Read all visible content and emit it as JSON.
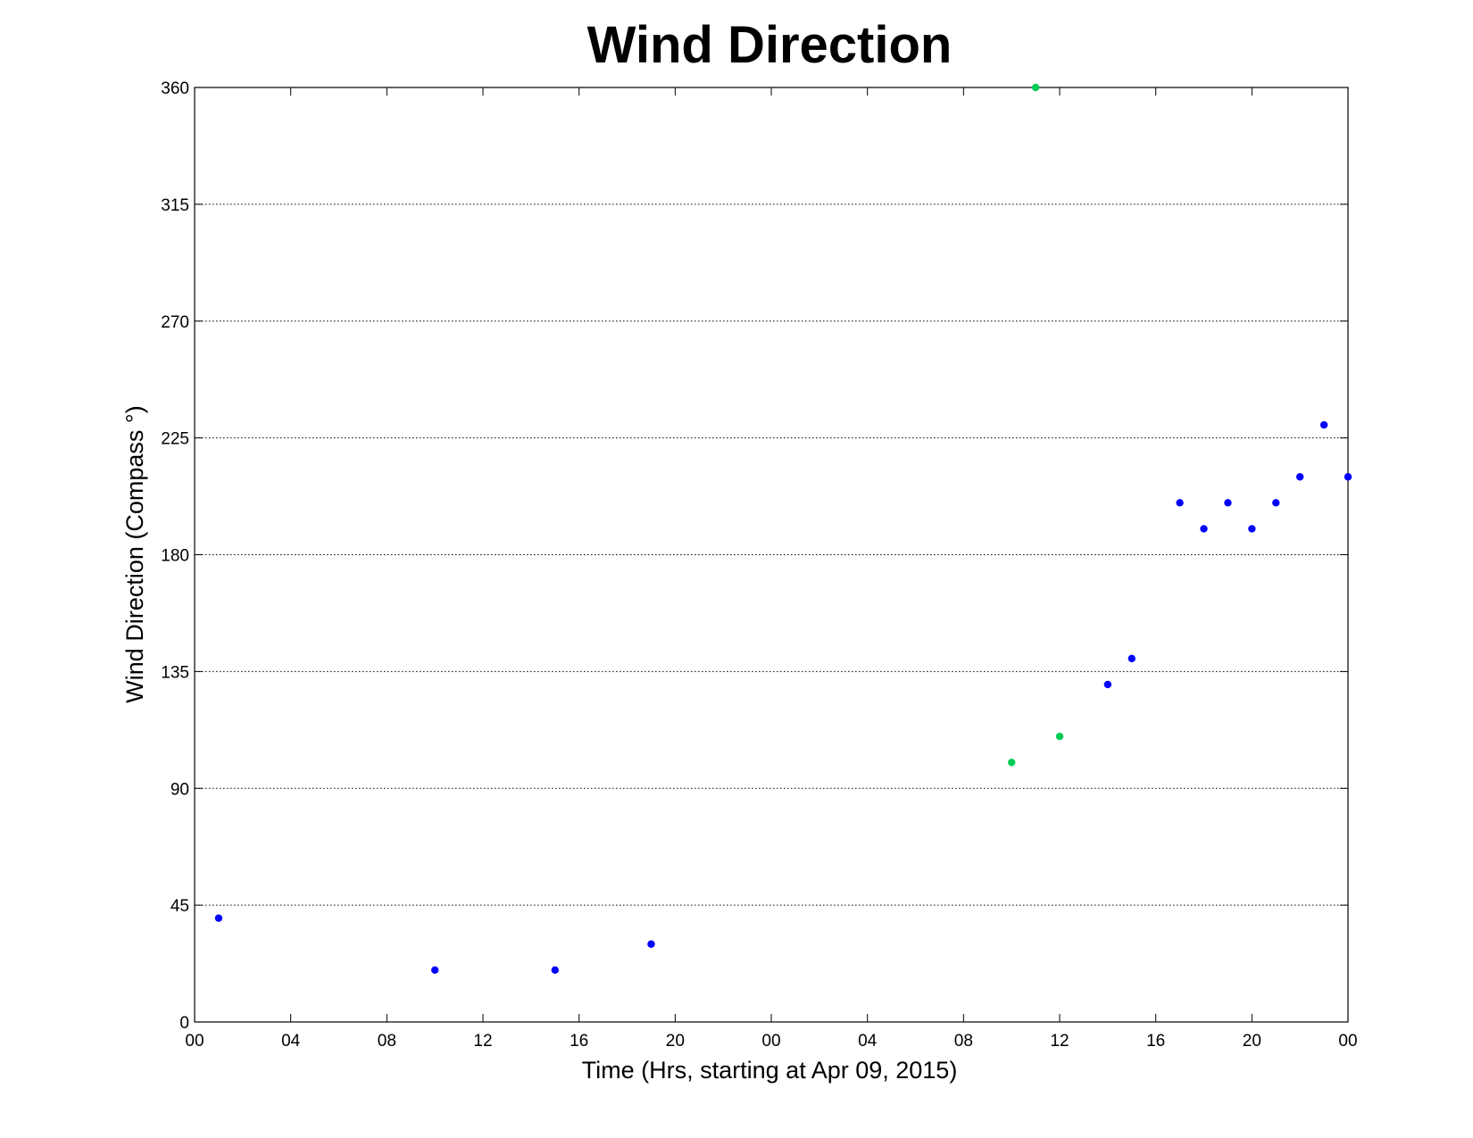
{
  "chart_data": {
    "type": "scatter",
    "title": "Wind Direction",
    "xlabel": "Time (Hrs, starting at Apr 09, 2015)",
    "ylabel": "Wind Direction (Compass  °)",
    "xlim": [
      0,
      48
    ],
    "ylim": [
      0,
      360
    ],
    "x_unit": "hours",
    "x_ticks": [
      {
        "value": 0,
        "label": "00"
      },
      {
        "value": 4,
        "label": "04"
      },
      {
        "value": 8,
        "label": "08"
      },
      {
        "value": 12,
        "label": "12"
      },
      {
        "value": 16,
        "label": "16"
      },
      {
        "value": 20,
        "label": "20"
      },
      {
        "value": 24,
        "label": "00"
      },
      {
        "value": 28,
        "label": "04"
      },
      {
        "value": 32,
        "label": "08"
      },
      {
        "value": 36,
        "label": "12"
      },
      {
        "value": 40,
        "label": "16"
      },
      {
        "value": 44,
        "label": "20"
      },
      {
        "value": 48,
        "label": "00"
      }
    ],
    "y_ticks": [
      0,
      45,
      90,
      135,
      180,
      225,
      270,
      315,
      360
    ],
    "grid": true,
    "legend": "none",
    "series": [
      {
        "color": "#0000ff",
        "points": [
          {
            "x": 1,
            "y": 40
          },
          {
            "x": 10,
            "y": 20
          },
          {
            "x": 15,
            "y": 20
          },
          {
            "x": 19,
            "y": 30
          },
          {
            "x": 38,
            "y": 130
          },
          {
            "x": 39,
            "y": 140
          },
          {
            "x": 41,
            "y": 200
          },
          {
            "x": 42,
            "y": 190
          },
          {
            "x": 43,
            "y": 200
          },
          {
            "x": 44,
            "y": 190
          },
          {
            "x": 45,
            "y": 200
          },
          {
            "x": 46,
            "y": 210
          },
          {
            "x": 47,
            "y": 230
          },
          {
            "x": 48,
            "y": 210
          }
        ]
      },
      {
        "color": "#00cc55",
        "points": [
          {
            "x": 34,
            "y": 100
          },
          {
            "x": 35,
            "y": 360
          },
          {
            "x": 36,
            "y": 110
          }
        ]
      }
    ]
  }
}
